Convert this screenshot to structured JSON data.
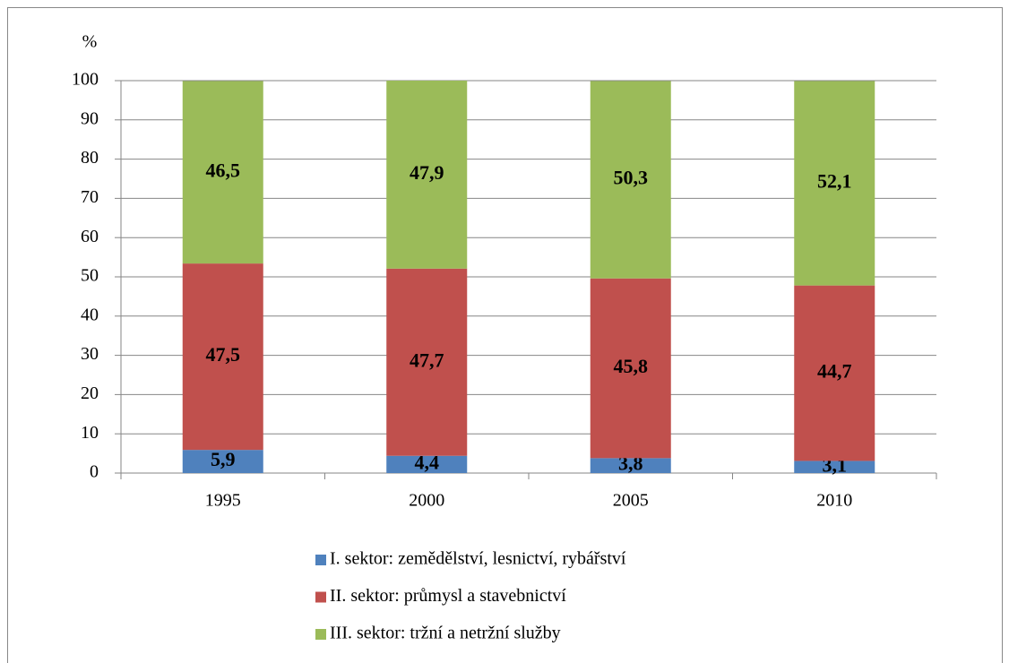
{
  "chart_data": {
    "type": "stacked_bar",
    "y_label": "%",
    "categories": [
      "1995",
      "2000",
      "2005",
      "2010"
    ],
    "series": [
      {
        "name": "I. sektor: zemědělství, lesnictví, rybářství",
        "color": "#4f81bd",
        "values": [
          5.9,
          4.4,
          3.8,
          3.1
        ],
        "value_labels": [
          "5,9",
          "4,4",
          "3,8",
          "3,1"
        ]
      },
      {
        "name": "II. sektor: průmysl a stavebnictví",
        "color": "#c0504d",
        "values": [
          47.5,
          47.7,
          45.8,
          44.7
        ],
        "value_labels": [
          "47,5",
          "47,7",
          "45,8",
          "44,7"
        ]
      },
      {
        "name": "III. sektor: tržní a netržní služby",
        "color": "#9bbb59",
        "values": [
          46.5,
          47.9,
          50.3,
          52.1
        ],
        "value_labels": [
          "46,5",
          "47,9",
          "50,3",
          "52,1"
        ]
      }
    ],
    "ylim": [
      0,
      100
    ],
    "yticks": [
      0,
      10,
      20,
      30,
      40,
      50,
      60,
      70,
      80,
      90,
      100
    ],
    "grid": true
  }
}
